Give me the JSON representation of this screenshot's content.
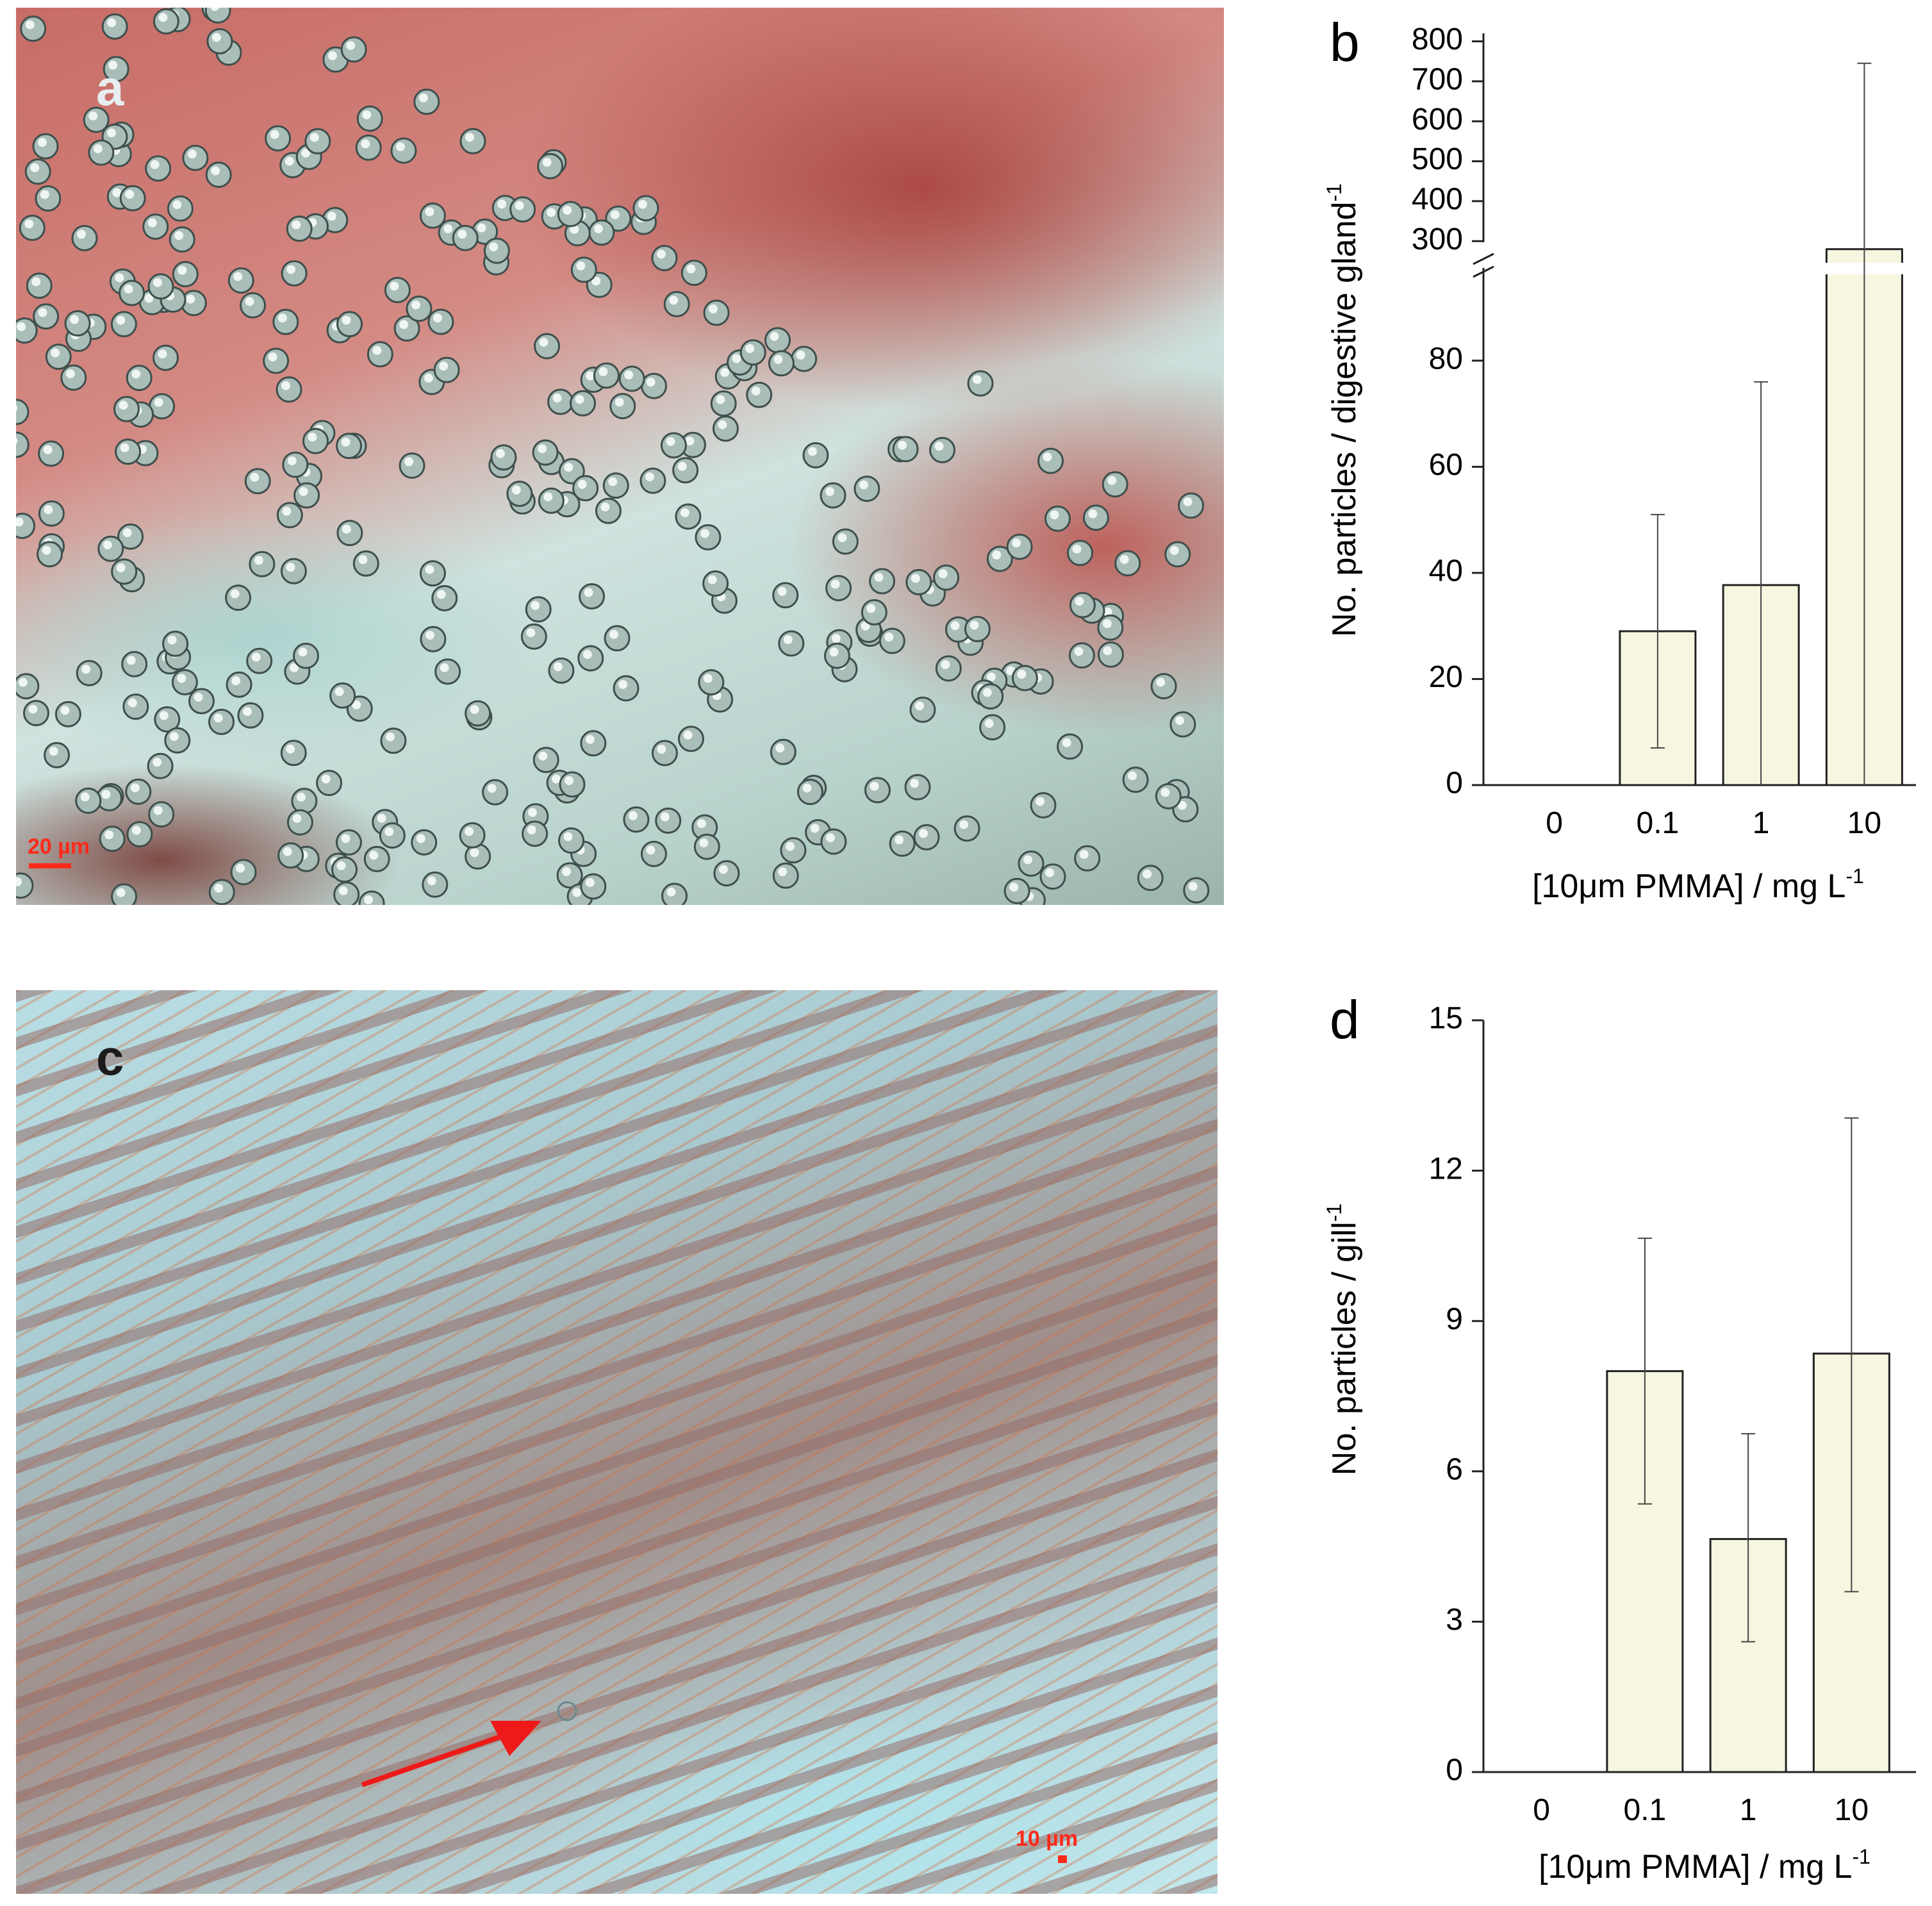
{
  "panel_a": {
    "letter": "a",
    "scale_bar": "20 µm"
  },
  "panel_c": {
    "letter": "c",
    "scale_bar": "10 µm"
  },
  "chart_data": [
    {
      "type": "bar",
      "panel_letter": "b",
      "categories": [
        "0",
        "0.1",
        "1",
        "10"
      ],
      "values": [
        0,
        29,
        37.7,
        280
      ],
      "error_low": [
        0,
        7,
        0,
        0
      ],
      "error_high": [
        0,
        51,
        76,
        745
      ],
      "xlabel": "[10μm PMMA] / mg L",
      "xlabel_sup": "-1",
      "ylabel": "No. particles / digestive gland",
      "ylabel_sup": "-1",
      "y_axis_lower": {
        "range": [
          0,
          90
        ],
        "ticks": [
          "0",
          "20",
          "40",
          "60",
          "80"
        ]
      },
      "y_axis_upper": {
        "range": [
          270,
          820
        ],
        "ticks": [
          "300",
          "400",
          "500",
          "600",
          "700",
          "800"
        ]
      },
      "axis_break": true,
      "bar_color": "#f7f6e1"
    },
    {
      "type": "bar",
      "panel_letter": "d",
      "categories": [
        "0",
        "0.1",
        "1",
        "10"
      ],
      "values": [
        0,
        8.0,
        4.65,
        8.35
      ],
      "error_low": [
        0,
        5.35,
        2.6,
        3.6
      ],
      "error_high": [
        0,
        10.65,
        6.75,
        13.05
      ],
      "xlabel": "[10μm PMMA] / mg L",
      "xlabel_sup": "-1",
      "ylabel": "No. particles / gill",
      "ylabel_sup": "-1",
      "ylim": [
        0,
        15
      ],
      "yticks": [
        "0",
        "3",
        "6",
        "9",
        "12",
        "15"
      ],
      "bar_color": "#f7f6e1"
    }
  ]
}
